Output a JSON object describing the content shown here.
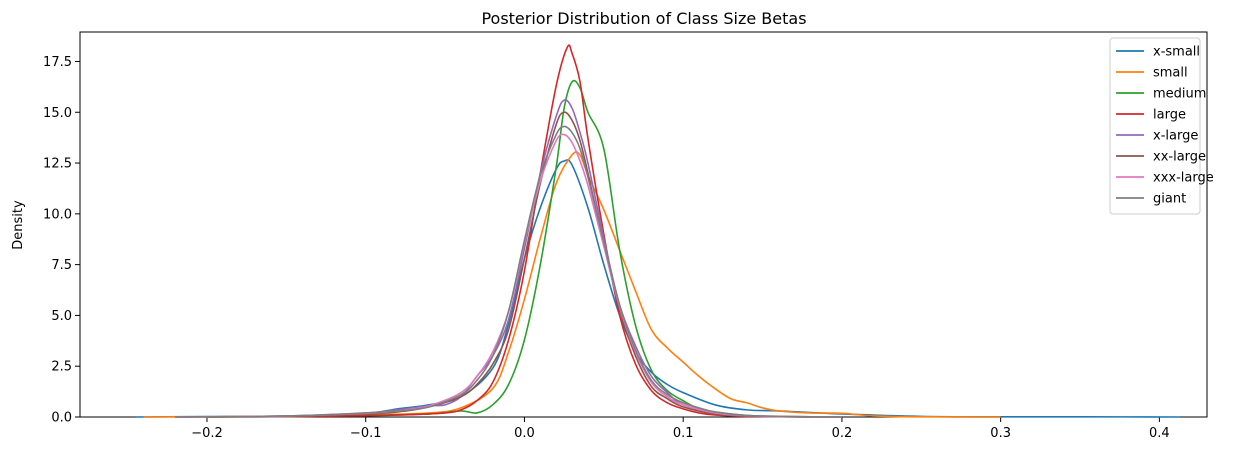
{
  "chart_data": {
    "type": "line",
    "title": "Posterior Distribution of Class Size Betas",
    "xlabel": "",
    "ylabel": "Density",
    "xlim": [
      -0.28,
      0.43
    ],
    "ylim": [
      0,
      18.95
    ],
    "xticks": [
      -0.2,
      -0.1,
      0.0,
      0.1,
      0.2,
      0.3,
      0.4
    ],
    "xtick_labels": [
      "−0.2",
      "−0.1",
      "0.0",
      "0.1",
      "0.2",
      "0.3",
      "0.4"
    ],
    "yticks": [
      0,
      2.5,
      5,
      7.5,
      10,
      12.5,
      15,
      17.5
    ],
    "ytick_labels": [
      "0.0",
      "2.5",
      "5.0",
      "7.5",
      "10.0",
      "12.5",
      "15.0",
      "17.5"
    ],
    "grid": false,
    "legend_position": "top-right",
    "series": [
      {
        "name": "x-small",
        "color": "#1f77b4",
        "points": [
          [
            -0.245,
            0
          ],
          [
            -0.2,
            0.02
          ],
          [
            -0.15,
            0.05
          ],
          [
            -0.1,
            0.18
          ],
          [
            -0.08,
            0.4
          ],
          [
            -0.06,
            0.6
          ],
          [
            -0.04,
            1.0
          ],
          [
            -0.02,
            2.4
          ],
          [
            -0.01,
            4.6
          ],
          [
            0,
            7.8
          ],
          [
            0.01,
            10.3
          ],
          [
            0.02,
            12.2
          ],
          [
            0.025,
            12.6
          ],
          [
            0.03,
            12.4
          ],
          [
            0.04,
            10.3
          ],
          [
            0.05,
            7.5
          ],
          [
            0.06,
            5.0
          ],
          [
            0.07,
            3.2
          ],
          [
            0.08,
            2.2
          ],
          [
            0.09,
            1.6
          ],
          [
            0.1,
            1.2
          ],
          [
            0.12,
            0.6
          ],
          [
            0.14,
            0.35
          ],
          [
            0.16,
            0.3
          ],
          [
            0.2,
            0.15
          ],
          [
            0.25,
            0.03
          ],
          [
            0.3,
            0.01
          ],
          [
            0.35,
            0.01
          ],
          [
            0.413,
            0
          ]
        ]
      },
      {
        "name": "small",
        "color": "#ff7f0e",
        "points": [
          [
            -0.24,
            0
          ],
          [
            -0.2,
            0.01
          ],
          [
            -0.15,
            0.03
          ],
          [
            -0.1,
            0.1
          ],
          [
            -0.06,
            0.2
          ],
          [
            -0.04,
            0.45
          ],
          [
            -0.02,
            1.4
          ],
          [
            -0.01,
            3.2
          ],
          [
            0,
            5.8
          ],
          [
            0.01,
            8.8
          ],
          [
            0.02,
            11.5
          ],
          [
            0.03,
            12.9
          ],
          [
            0.035,
            12.9
          ],
          [
            0.04,
            11.9
          ],
          [
            0.05,
            10.2
          ],
          [
            0.06,
            8.2
          ],
          [
            0.07,
            6.2
          ],
          [
            0.08,
            4.3
          ],
          [
            0.09,
            3.4
          ],
          [
            0.1,
            2.7
          ],
          [
            0.11,
            2.0
          ],
          [
            0.12,
            1.4
          ],
          [
            0.13,
            0.9
          ],
          [
            0.14,
            0.7
          ],
          [
            0.15,
            0.45
          ],
          [
            0.16,
            0.3
          ],
          [
            0.18,
            0.2
          ],
          [
            0.2,
            0.18
          ],
          [
            0.22,
            0.05
          ],
          [
            0.25,
            0.01
          ],
          [
            0.3,
            0
          ]
        ]
      },
      {
        "name": "medium",
        "color": "#2ca02c",
        "points": [
          [
            -0.2,
            0
          ],
          [
            -0.15,
            0.02
          ],
          [
            -0.1,
            0.08
          ],
          [
            -0.06,
            0.15
          ],
          [
            -0.04,
            0.3
          ],
          [
            -0.03,
            0.2
          ],
          [
            -0.02,
            0.6
          ],
          [
            -0.01,
            1.6
          ],
          [
            0,
            3.8
          ],
          [
            0.01,
            7.5
          ],
          [
            0.02,
            12.3
          ],
          [
            0.025,
            15.2
          ],
          [
            0.03,
            16.5
          ],
          [
            0.035,
            16.2
          ],
          [
            0.04,
            15.0
          ],
          [
            0.05,
            13.2
          ],
          [
            0.06,
            8.2
          ],
          [
            0.07,
            4.5
          ],
          [
            0.08,
            2.3
          ],
          [
            0.09,
            1.3
          ],
          [
            0.1,
            0.8
          ],
          [
            0.11,
            0.4
          ],
          [
            0.12,
            0.25
          ],
          [
            0.14,
            0.08
          ],
          [
            0.16,
            0.02
          ],
          [
            0.2,
            0
          ]
        ]
      },
      {
        "name": "large",
        "color": "#d62728",
        "points": [
          [
            -0.2,
            0
          ],
          [
            -0.15,
            0.02
          ],
          [
            -0.1,
            0.06
          ],
          [
            -0.07,
            0.12
          ],
          [
            -0.05,
            0.2
          ],
          [
            -0.04,
            0.35
          ],
          [
            -0.03,
            0.8
          ],
          [
            -0.02,
            1.7
          ],
          [
            -0.01,
            3.8
          ],
          [
            0,
            7.2
          ],
          [
            0.01,
            12.0
          ],
          [
            0.02,
            16.3
          ],
          [
            0.027,
            18.2
          ],
          [
            0.03,
            17.9
          ],
          [
            0.035,
            16.5
          ],
          [
            0.04,
            13.7
          ],
          [
            0.05,
            9.0
          ],
          [
            0.06,
            5.0
          ],
          [
            0.07,
            2.6
          ],
          [
            0.08,
            1.3
          ],
          [
            0.09,
            0.7
          ],
          [
            0.1,
            0.4
          ],
          [
            0.11,
            0.2
          ],
          [
            0.12,
            0.1
          ],
          [
            0.14,
            0.03
          ],
          [
            0.18,
            0
          ]
        ]
      },
      {
        "name": "x-large",
        "color": "#9467bd",
        "points": [
          [
            -0.22,
            0
          ],
          [
            -0.15,
            0.04
          ],
          [
            -0.1,
            0.2
          ],
          [
            -0.08,
            0.35
          ],
          [
            -0.06,
            0.55
          ],
          [
            -0.05,
            0.6
          ],
          [
            -0.04,
            1.0
          ],
          [
            -0.03,
            2.0
          ],
          [
            -0.02,
            3.0
          ],
          [
            -0.01,
            4.8
          ],
          [
            0,
            8.3
          ],
          [
            0.01,
            12.0
          ],
          [
            0.02,
            14.8
          ],
          [
            0.025,
            15.6
          ],
          [
            0.03,
            15.2
          ],
          [
            0.035,
            14.0
          ],
          [
            0.04,
            12.5
          ],
          [
            0.05,
            8.8
          ],
          [
            0.06,
            5.5
          ],
          [
            0.07,
            3.5
          ],
          [
            0.08,
            2.0
          ],
          [
            0.09,
            1.2
          ],
          [
            0.1,
            0.6
          ],
          [
            0.12,
            0.2
          ],
          [
            0.14,
            0.06
          ],
          [
            0.17,
            0.01
          ],
          [
            0.2,
            0
          ]
        ]
      },
      {
        "name": "xx-large",
        "color": "#8c564b",
        "points": [
          [
            -0.22,
            0
          ],
          [
            -0.15,
            0.04
          ],
          [
            -0.1,
            0.15
          ],
          [
            -0.08,
            0.25
          ],
          [
            -0.06,
            0.5
          ],
          [
            -0.04,
            1.0
          ],
          [
            -0.03,
            1.6
          ],
          [
            -0.02,
            2.6
          ],
          [
            -0.01,
            4.3
          ],
          [
            0,
            7.8
          ],
          [
            0.01,
            11.5
          ],
          [
            0.02,
            14.4
          ],
          [
            0.025,
            15.0
          ],
          [
            0.03,
            14.6
          ],
          [
            0.035,
            13.6
          ],
          [
            0.04,
            12.0
          ],
          [
            0.05,
            8.5
          ],
          [
            0.06,
            5.3
          ],
          [
            0.07,
            3.0
          ],
          [
            0.08,
            1.5
          ],
          [
            0.09,
            0.9
          ],
          [
            0.1,
            0.5
          ],
          [
            0.12,
            0.15
          ],
          [
            0.14,
            0.05
          ],
          [
            0.17,
            0.01
          ],
          [
            0.2,
            0
          ]
        ]
      },
      {
        "name": "xxx-large",
        "color": "#e377c2",
        "points": [
          [
            -0.22,
            0
          ],
          [
            -0.15,
            0.05
          ],
          [
            -0.1,
            0.18
          ],
          [
            -0.08,
            0.3
          ],
          [
            -0.06,
            0.55
          ],
          [
            -0.04,
            1.2
          ],
          [
            -0.03,
            2.0
          ],
          [
            -0.02,
            3.2
          ],
          [
            -0.01,
            5.2
          ],
          [
            0,
            8.6
          ],
          [
            0.01,
            11.6
          ],
          [
            0.02,
            13.6
          ],
          [
            0.025,
            13.9
          ],
          [
            0.03,
            13.5
          ],
          [
            0.035,
            12.6
          ],
          [
            0.04,
            11.4
          ],
          [
            0.05,
            8.4
          ],
          [
            0.06,
            5.4
          ],
          [
            0.07,
            3.2
          ],
          [
            0.08,
            1.7
          ],
          [
            0.09,
            1.0
          ],
          [
            0.1,
            0.6
          ],
          [
            0.12,
            0.2
          ],
          [
            0.14,
            0.07
          ],
          [
            0.17,
            0.02
          ],
          [
            0.2,
            0
          ]
        ]
      },
      {
        "name": "giant",
        "color": "#7f7f7f",
        "points": [
          [
            -0.22,
            0
          ],
          [
            -0.15,
            0.05
          ],
          [
            -0.1,
            0.2
          ],
          [
            -0.08,
            0.3
          ],
          [
            -0.06,
            0.5
          ],
          [
            -0.04,
            1.1
          ],
          [
            -0.03,
            1.8
          ],
          [
            -0.02,
            3.0
          ],
          [
            -0.01,
            5.2
          ],
          [
            0,
            8.7
          ],
          [
            0.01,
            11.9
          ],
          [
            0.02,
            13.9
          ],
          [
            0.025,
            14.3
          ],
          [
            0.03,
            14.0
          ],
          [
            0.035,
            13.2
          ],
          [
            0.04,
            11.8
          ],
          [
            0.05,
            8.6
          ],
          [
            0.06,
            5.5
          ],
          [
            0.07,
            3.3
          ],
          [
            0.08,
            1.8
          ],
          [
            0.09,
            1.1
          ],
          [
            0.1,
            0.7
          ],
          [
            0.11,
            0.45
          ],
          [
            0.12,
            0.25
          ],
          [
            0.14,
            0.08
          ],
          [
            0.17,
            0.02
          ],
          [
            0.2,
            0
          ]
        ]
      }
    ]
  }
}
